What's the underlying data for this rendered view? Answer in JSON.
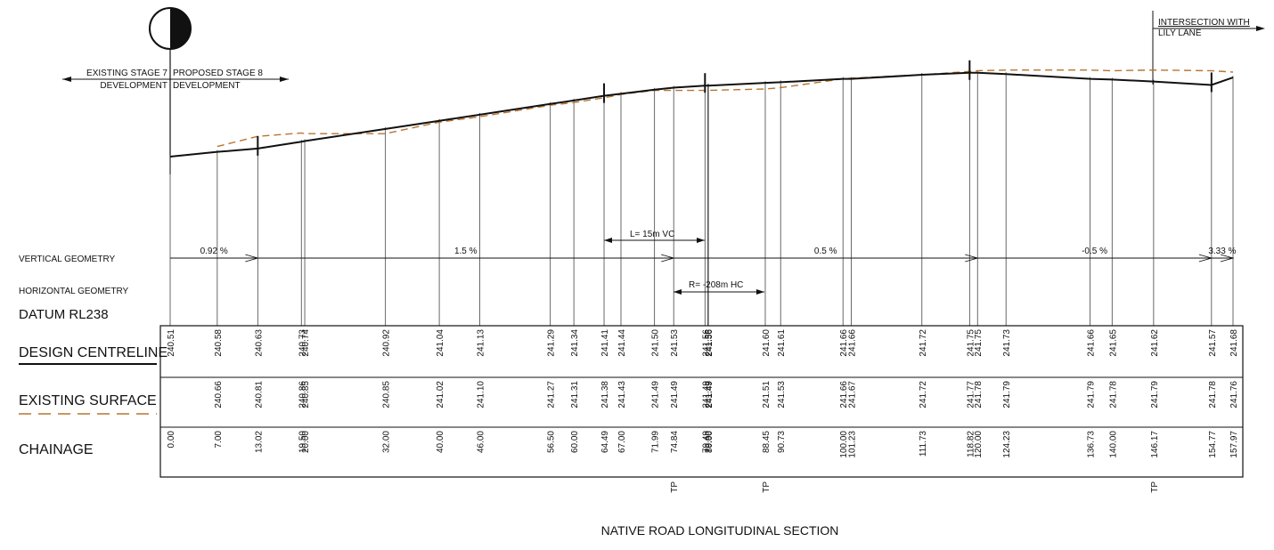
{
  "title": "NATIVE ROAD LONGITUDINAL SECTION",
  "labels": {
    "existing_stage": "EXISTING STAGE 7",
    "existing_dev": "DEVELOPMENT",
    "proposed_stage": "PROPOSED STAGE 8",
    "proposed_dev": "DEVELOPMENT",
    "intersection_1": "INTERSECTION WITH",
    "intersection_2": "LILY LANE",
    "vertical_geometry": "VERTICAL GEOMETRY",
    "horizontal_geometry": "HORIZONTAL GEOMETRY",
    "datum": "DATUM RL238",
    "design_centreline": "DESIGN CENTRELINE",
    "existing_surface": "EXISTING SURFACE",
    "chainage": "CHAINAGE"
  },
  "annotations": {
    "vc": "L= 15m VC",
    "hc": "R= -208m HC",
    "tp": "TP",
    "tp_chainages": [
      74.84,
      88.45,
      146.17
    ]
  },
  "grades": [
    {
      "label": "0.92 %",
      "from": 0.0,
      "to": 13.02
    },
    {
      "label": "1.5 %",
      "from": 13.02,
      "to": 74.84
    },
    {
      "label": "0.5 %",
      "from": 74.84,
      "to": 120.0
    },
    {
      "label": "-0.5 %",
      "from": 120.0,
      "to": 154.77
    },
    {
      "label": "3.33 %",
      "from": 154.77,
      "to": 157.97
    }
  ],
  "chart_data": {
    "type": "line",
    "xlabel": "CHAINAGE",
    "series": [
      {
        "name": "DESIGN CENTRELINE",
        "x": [
          0.0,
          7.0,
          13.02,
          19.5,
          20.0,
          32.0,
          40.0,
          46.0,
          56.5,
          60.0,
          64.49,
          67.0,
          71.99,
          74.84,
          79.49,
          79.9,
          80.0,
          88.45,
          90.73,
          100.0,
          101.23,
          111.73,
          118.82,
          120.0,
          124.23,
          136.73,
          140.0,
          146.17,
          154.77,
          157.97
        ],
        "y": [
          240.51,
          240.58,
          240.63,
          240.73,
          240.74,
          240.92,
          241.04,
          241.13,
          241.29,
          241.34,
          241.41,
          241.44,
          241.5,
          241.53,
          241.56,
          241.56,
          241.56,
          241.6,
          241.61,
          241.66,
          241.66,
          241.72,
          241.75,
          241.75,
          241.73,
          241.66,
          241.65,
          241.62,
          241.57,
          241.68
        ]
      },
      {
        "name": "EXISTING SURFACE",
        "x": [
          7.0,
          13.02,
          19.5,
          20.0,
          32.0,
          40.0,
          46.0,
          56.5,
          60.0,
          64.49,
          67.0,
          71.99,
          74.84,
          79.49,
          79.9,
          80.0,
          88.45,
          90.73,
          100.0,
          101.23,
          111.73,
          118.82,
          120.0,
          124.23,
          136.73,
          140.0,
          146.17,
          154.77,
          157.97
        ],
        "y": [
          240.66,
          240.81,
          240.86,
          240.85,
          240.85,
          241.02,
          241.1,
          241.27,
          241.31,
          241.38,
          241.43,
          241.49,
          241.49,
          241.49,
          241.49,
          241.49,
          241.51,
          241.53,
          241.66,
          241.67,
          241.72,
          241.77,
          241.78,
          241.79,
          241.79,
          241.78,
          241.79,
          241.78,
          241.76
        ]
      }
    ]
  }
}
